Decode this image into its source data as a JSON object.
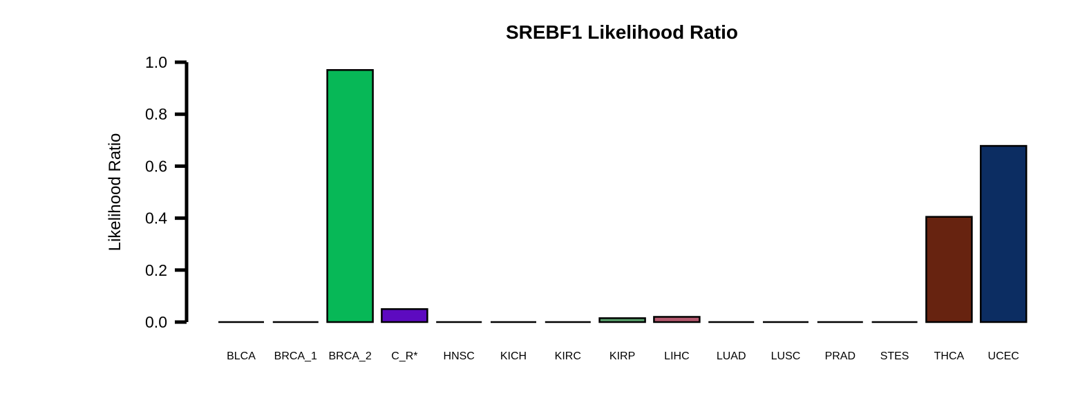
{
  "chart_data": {
    "type": "bar",
    "title": "SREBF1 Likelihood Ratio",
    "xlabel": "",
    "ylabel": "Likelihood Ratio",
    "ylim": [
      0,
      1
    ],
    "yticks": [
      "0.0",
      "0.2",
      "0.4",
      "0.6",
      "0.8",
      "1.0"
    ],
    "categories": [
      "BLCA",
      "BRCA_1",
      "BRCA_2",
      "C_R*",
      "HNSC",
      "KICH",
      "KIRC",
      "KIRP",
      "LIHC",
      "LUAD",
      "LUSC",
      "PRAD",
      "STES",
      "THCA",
      "UCEC"
    ],
    "values": [
      0,
      0,
      0.97,
      0.05,
      0,
      0,
      0,
      0.015,
      0.02,
      0,
      0,
      0,
      0,
      0.405,
      0.678
    ],
    "colors": [
      "#000000",
      "#000000",
      "#07b857",
      "#5d0ac0",
      "#000000",
      "#000000",
      "#000000",
      "#5aa36e",
      "#b5596f",
      "#000000",
      "#000000",
      "#000000",
      "#000000",
      "#672310",
      "#0c2d62"
    ],
    "grid": false,
    "legend": "none"
  }
}
